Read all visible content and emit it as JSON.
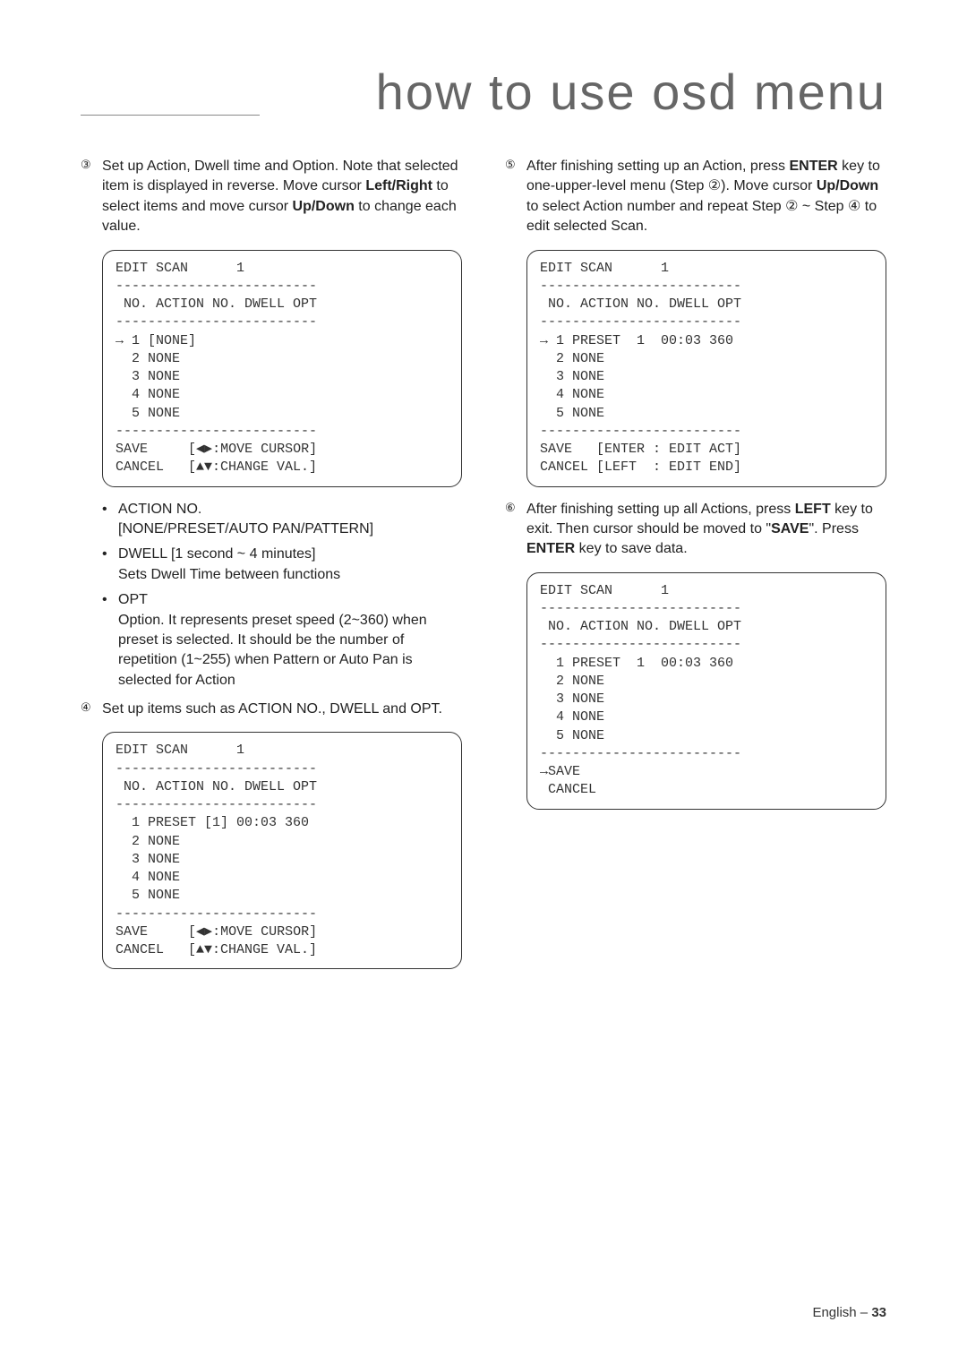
{
  "title": "how to use osd menu",
  "left": {
    "step3": {
      "num": "③",
      "text_pre": "Set up Action, Dwell time and Option. Note that selected item is displayed in reverse. Move cursor ",
      "bold1": "Left/Right",
      "text_mid": " to select items and move cursor ",
      "bold2": "Up/Down",
      "text_post": " to change each value."
    },
    "osd1": "EDIT SCAN      1\n-------------------------\n NO. ACTION NO. DWELL OPT\n-------------------------\n→ 1 [NONE]\n  2 NONE\n  3 NONE\n  4 NONE\n  5 NONE\n-------------------------\nSAVE     [◀▶:MOVE CURSOR]\nCANCEL   [▲▼:CHANGE VAL.]",
    "bullets": {
      "b1_label": "ACTION NO.",
      "b1_sub": "[NONE/PRESET/AUTO PAN/PATTERN]",
      "b2_label": "DWELL     [1 second ~ 4 minutes]",
      "b2_sub": "Sets Dwell Time between functions",
      "b3_label": "OPT",
      "b3_sub": "Option. It represents preset speed (2~360) when preset is selected. It should be the number of repetition (1~255) when Pattern or Auto Pan is selected for Action"
    },
    "step4": {
      "num": "④",
      "text": "Set up items such as ACTION NO., DWELL and OPT."
    },
    "osd2": "EDIT SCAN      1\n-------------------------\n NO. ACTION NO. DWELL OPT\n-------------------------\n  1 PRESET [1] 00:03 360\n  2 NONE\n  3 NONE\n  4 NONE\n  5 NONE\n-------------------------\nSAVE     [◀▶:MOVE CURSOR]\nCANCEL   [▲▼:CHANGE VAL.]"
  },
  "right": {
    "step5": {
      "num": "⑤",
      "text_pre": "After finishing setting up an Action, press ",
      "bold1": "ENTER",
      "text_mid1": " key to one-upper-level menu (Step ②). Move cursor ",
      "bold2": "Up/Down",
      "text_mid2": " to select Action number and repeat Step ② ~ Step ④ to edit selected Scan."
    },
    "osd3": "EDIT SCAN      1\n-------------------------\n NO. ACTION NO. DWELL OPT\n-------------------------\n→ 1 PRESET  1  00:03 360\n  2 NONE\n  3 NONE\n  4 NONE\n  5 NONE\n-------------------------\nSAVE   [ENTER : EDIT ACT]\nCANCEL [LEFT  : EDIT END]",
    "step6": {
      "num": "⑥",
      "text_pre": "After finishing setting up all Actions, press ",
      "bold1": "LEFT",
      "text_mid1": " key to exit. Then cursor should be moved to \"",
      "bold2": "SAVE",
      "text_mid2": "\". Press ",
      "bold3": "ENTER",
      "text_post": " key to save data."
    },
    "osd4": "EDIT SCAN      1\n-------------------------\n NO. ACTION NO. DWELL OPT\n-------------------------\n  1 PRESET  1  00:03 360\n  2 NONE\n  3 NONE\n  4 NONE\n  5 NONE\n-------------------------\n→SAVE\n CANCEL"
  },
  "footer": {
    "lang": "English – ",
    "page": "33"
  }
}
